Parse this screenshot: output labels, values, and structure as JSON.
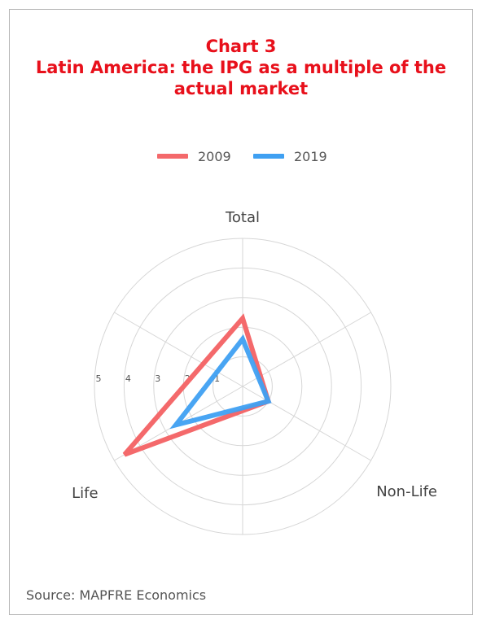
{
  "title": {
    "line1": "Chart 3",
    "line2": "Latin America: the IPG as a multiple of the",
    "line3": "actual market"
  },
  "source": "Source: MAPFRE Economics",
  "chart_data": {
    "type": "radar",
    "axes": [
      "Total",
      "Non-Life",
      "Life"
    ],
    "scale": {
      "min": 0,
      "max": 5,
      "ticks": [
        1,
        2,
        3,
        4,
        5
      ]
    },
    "series": [
      {
        "name": "2009",
        "color": "#f4696b",
        "values": [
          2.3,
          1.0,
          4.6
        ]
      },
      {
        "name": "2019",
        "color": "#3fa0f2",
        "values": [
          1.6,
          1.0,
          2.6
        ]
      }
    ],
    "legend_position": "top"
  }
}
